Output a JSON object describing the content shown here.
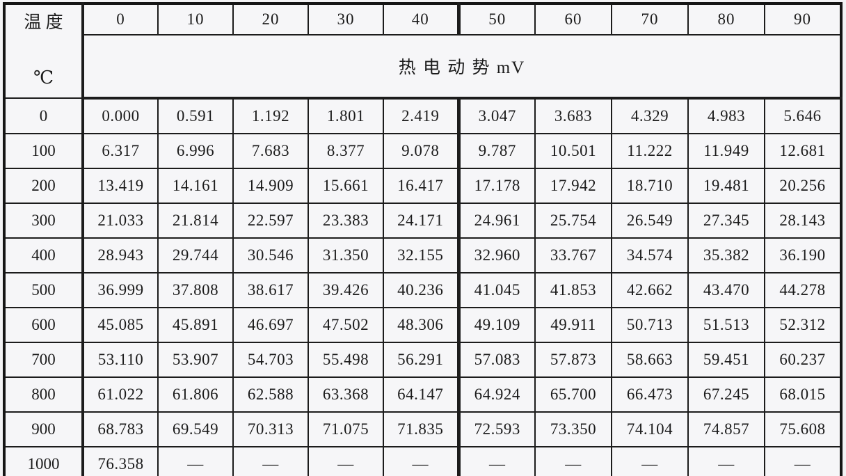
{
  "table": {
    "corner_header": {
      "line1": "温  度",
      "line2": "℃"
    },
    "col_headers": [
      "0",
      "10",
      "20",
      "30",
      "40",
      "50",
      "60",
      "70",
      "80",
      "90"
    ],
    "span_header": "热  电  动  势  mV",
    "rows": [
      {
        "temp": "0",
        "values": [
          "0.000",
          "0.591",
          "1.192",
          "1.801",
          "2.419",
          "3.047",
          "3.683",
          "4.329",
          "4.983",
          "5.646"
        ]
      },
      {
        "temp": "100",
        "values": [
          "6.317",
          "6.996",
          "7.683",
          "8.377",
          "9.078",
          "9.787",
          "10.501",
          "11.222",
          "11.949",
          "12.681"
        ]
      },
      {
        "temp": "200",
        "values": [
          "13.419",
          "14.161",
          "14.909",
          "15.661",
          "16.417",
          "17.178",
          "17.942",
          "18.710",
          "19.481",
          "20.256"
        ]
      },
      {
        "temp": "300",
        "values": [
          "21.033",
          "21.814",
          "22.597",
          "23.383",
          "24.171",
          "24.961",
          "25.754",
          "26.549",
          "27.345",
          "28.143"
        ]
      },
      {
        "temp": "400",
        "values": [
          "28.943",
          "29.744",
          "30.546",
          "31.350",
          "32.155",
          "32.960",
          "33.767",
          "34.574",
          "35.382",
          "36.190"
        ]
      },
      {
        "temp": "500",
        "values": [
          "36.999",
          "37.808",
          "38.617",
          "39.426",
          "40.236",
          "41.045",
          "41.853",
          "42.662",
          "43.470",
          "44.278"
        ]
      },
      {
        "temp": "600",
        "values": [
          "45.085",
          "45.891",
          "46.697",
          "47.502",
          "48.306",
          "49.109",
          "49.911",
          "50.713",
          "51.513",
          "52.312"
        ]
      },
      {
        "temp": "700",
        "values": [
          "53.110",
          "53.907",
          "54.703",
          "55.498",
          "56.291",
          "57.083",
          "57.873",
          "58.663",
          "59.451",
          "60.237"
        ]
      },
      {
        "temp": "800",
        "values": [
          "61.022",
          "61.806",
          "62.588",
          "63.368",
          "64.147",
          "64.924",
          "65.700",
          "66.473",
          "67.245",
          "68.015"
        ]
      },
      {
        "temp": "900",
        "values": [
          "68.783",
          "69.549",
          "70.313",
          "71.075",
          "71.835",
          "72.593",
          "73.350",
          "74.104",
          "74.857",
          "75.608"
        ]
      },
      {
        "temp": "1000",
        "values": [
          "76.358",
          "—",
          "—",
          "—",
          "—",
          "—",
          "—",
          "—",
          "—",
          "—"
        ]
      }
    ]
  },
  "colors": {
    "paper": "#f3f3f5",
    "cell_background": "#f6f6f8",
    "border": "#1c1c1c",
    "text": "#1b1b1b"
  }
}
